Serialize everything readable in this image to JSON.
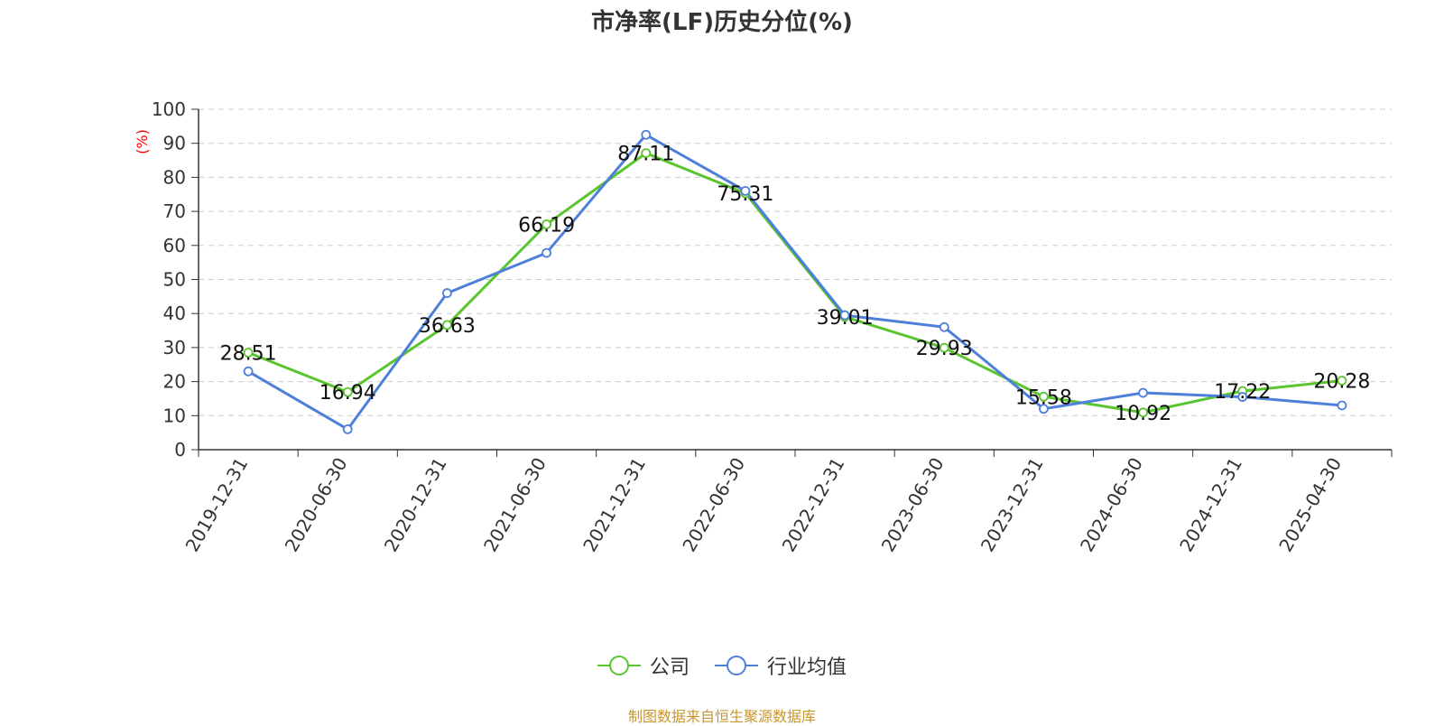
{
  "chart_data": {
    "type": "line",
    "title": "市净率(LF)历史分位(%)",
    "ylabel": "(%)",
    "xlabel": "",
    "ylim": [
      0,
      100
    ],
    "yticks": [
      0,
      10,
      20,
      30,
      40,
      50,
      60,
      70,
      80,
      90,
      100
    ],
    "grid": true,
    "categories": [
      "2019-12-31",
      "2020-06-30",
      "2020-12-31",
      "2021-06-30",
      "2021-12-31",
      "2022-06-30",
      "2022-12-31",
      "2023-06-30",
      "2023-12-31",
      "2024-06-30",
      "2024-12-31",
      "2025-04-30"
    ],
    "series": [
      {
        "name": "公司",
        "color": "#5ac52f",
        "values": [
          28.51,
          16.94,
          36.63,
          66.19,
          87.11,
          75.31,
          39.01,
          29.93,
          15.58,
          10.92,
          17.22,
          20.28
        ],
        "labels": [
          "28.51",
          "16.94",
          "36.63",
          "66.19",
          "87.11",
          "75.31",
          "39.01",
          "29.93",
          "15.58",
          "10.92",
          "17.22",
          "20.28"
        ]
      },
      {
        "name": "行业均值",
        "color": "#4e7fd9",
        "values": [
          23.0,
          6.0,
          46.0,
          57.8,
          92.5,
          76.0,
          39.5,
          36.0,
          12.0,
          16.7,
          15.5,
          13.0
        ]
      }
    ],
    "legend_position": "bottom-center"
  },
  "source": "制图数据来自恒生聚源数据库"
}
